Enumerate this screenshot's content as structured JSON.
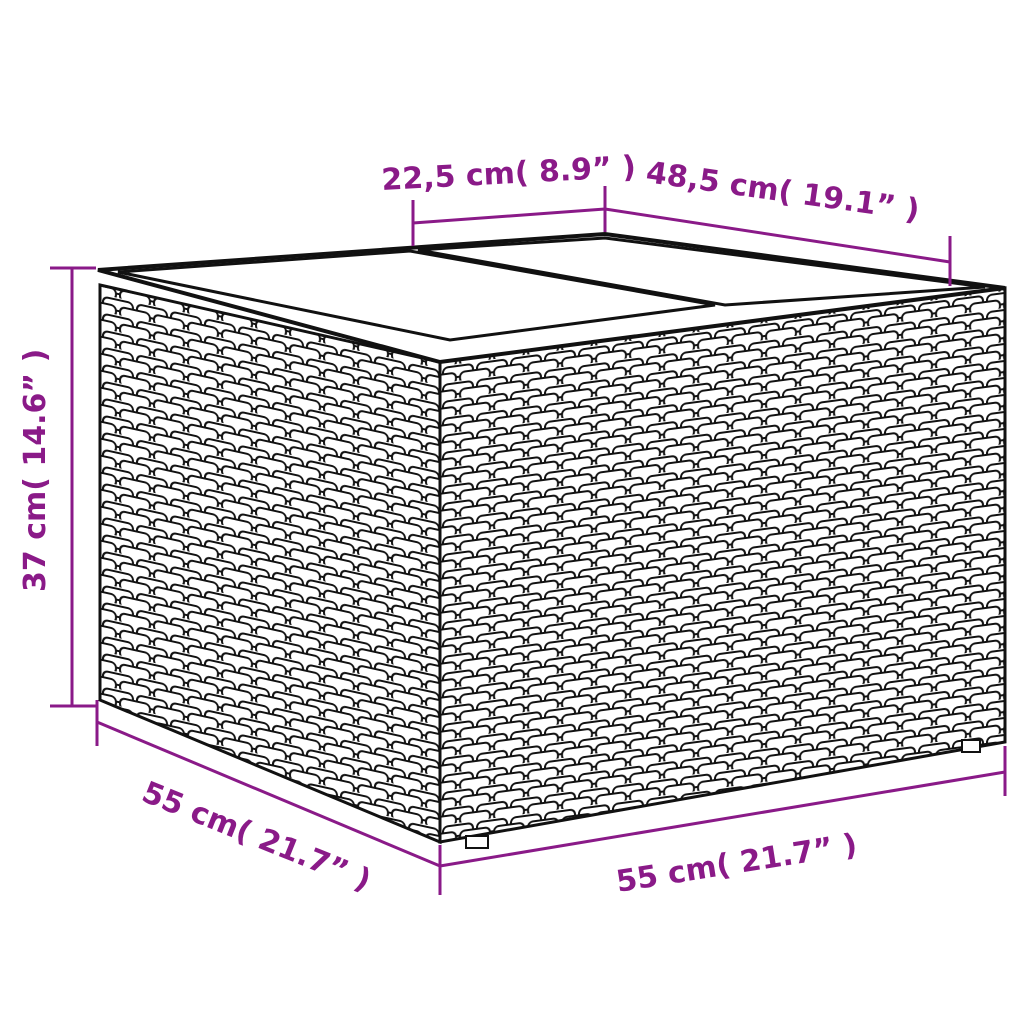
{
  "colors": {
    "dimension": "#8a1a88",
    "outline": "#111111",
    "background": "#ffffff"
  },
  "dimensions": {
    "lid_width": "22,5 cm( 8.9” )",
    "lid_depth": "48,5 cm( 19.1” )",
    "height": "37 cm( 14.6” )",
    "depth": "55 cm( 21.7” )",
    "width": "55 cm( 21.7” )"
  }
}
